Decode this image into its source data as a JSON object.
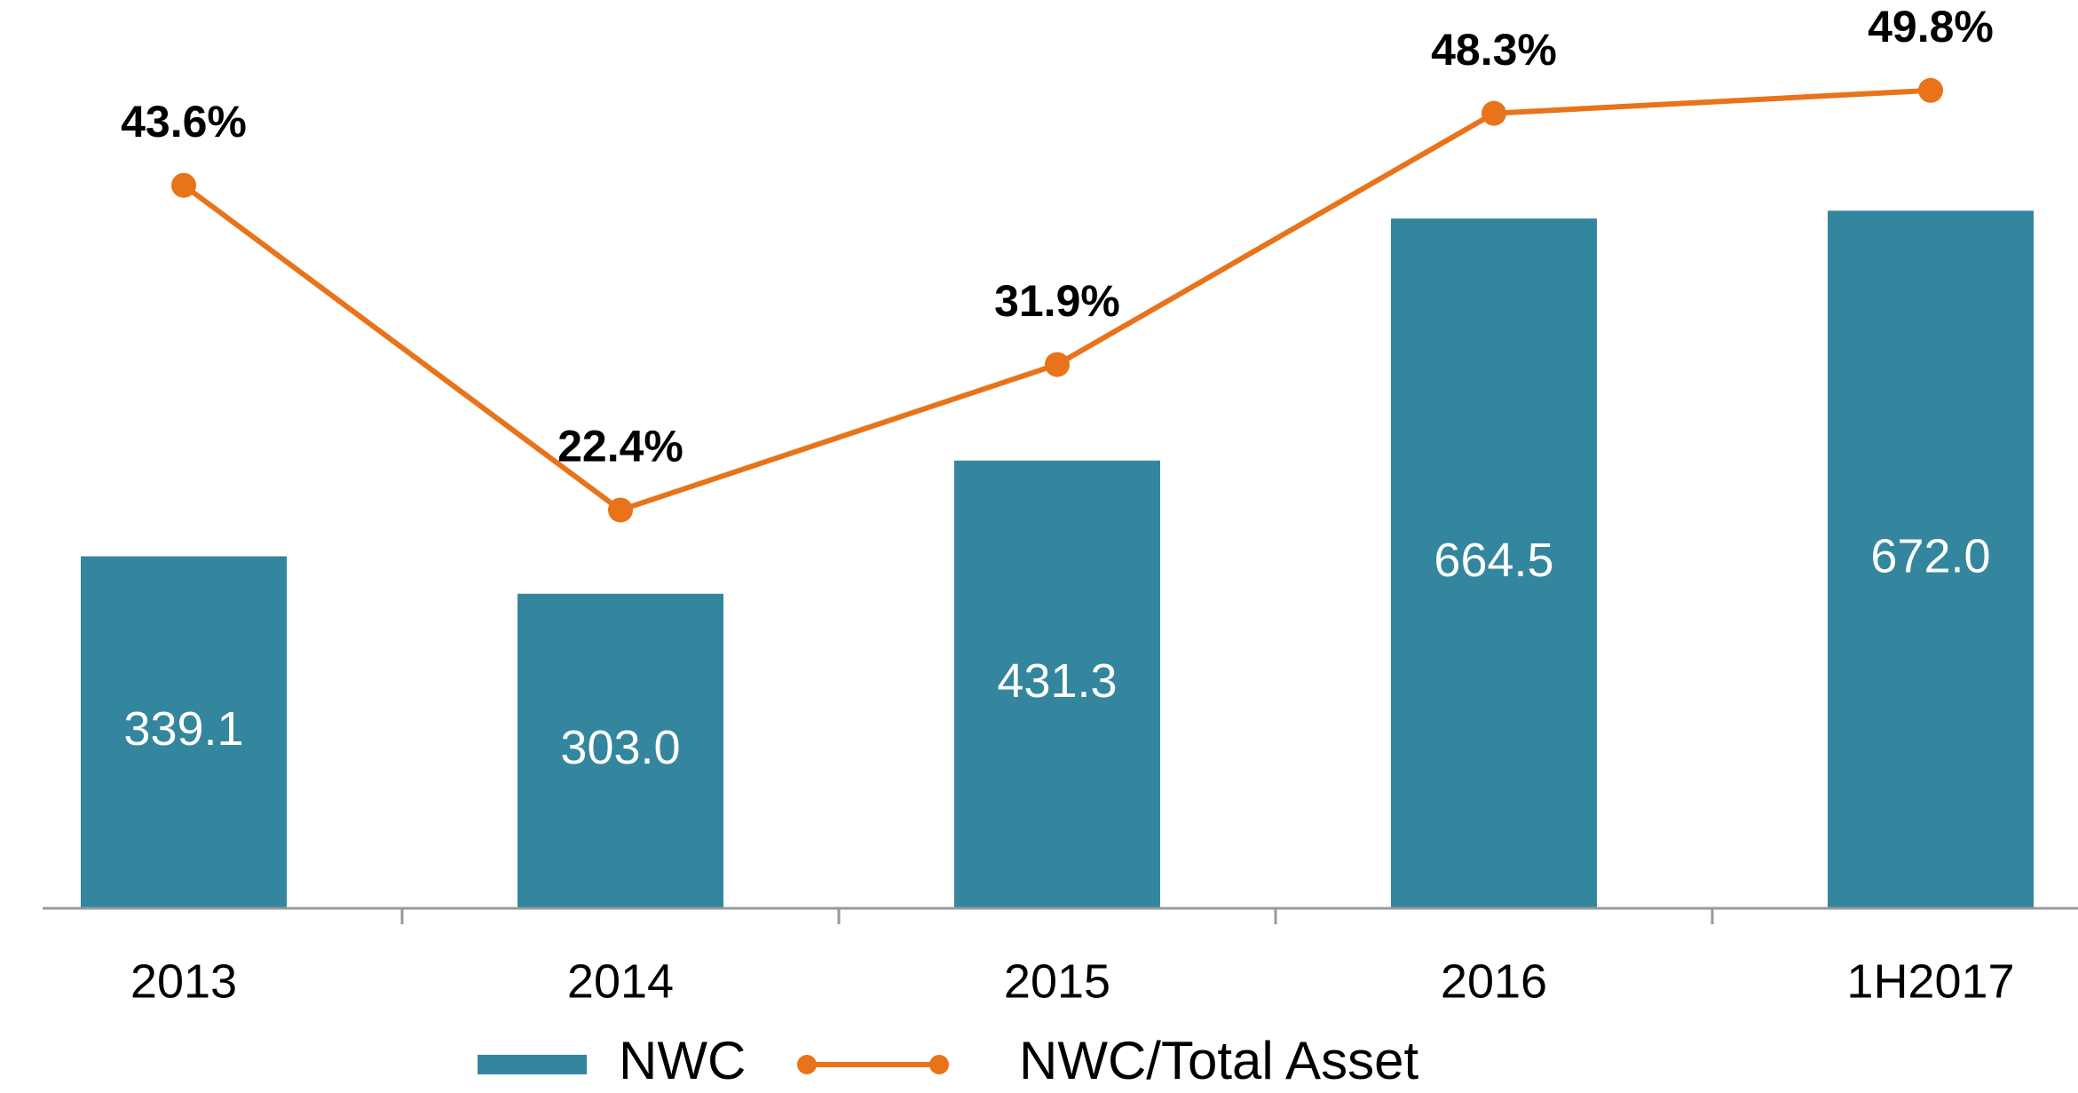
{
  "chart_data": {
    "type": "bar-line",
    "categories": [
      "2013",
      "2014",
      "2015",
      "2016",
      "1H2017"
    ],
    "series": [
      {
        "name": "NWC",
        "type": "bar",
        "color": "#33869e",
        "values": [
          339.1,
          303.0,
          431.3,
          664.5,
          672.0
        ],
        "value_labels": [
          "339.1",
          "303.0",
          "431.3",
          "664.5",
          "672.0"
        ]
      },
      {
        "name": "NWC/Total Asset",
        "type": "line",
        "axis": "y2",
        "color": "#e8731a",
        "values": [
          43.6,
          22.4,
          31.9,
          48.3,
          49.8
        ],
        "value_labels": [
          "43.6%",
          "22.4%",
          "31.9%",
          "48.3%",
          "49.8%"
        ]
      }
    ],
    "ylim": [
      0,
      875
    ],
    "y2lim": [
      -3.6,
      55.7
    ],
    "grid": false,
    "legend": "bottom"
  }
}
